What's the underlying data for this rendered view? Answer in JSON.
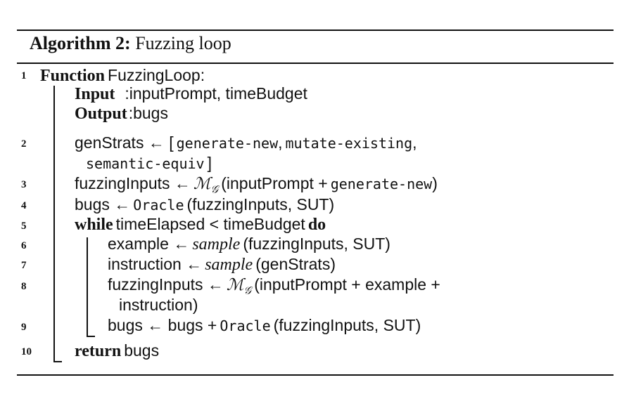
{
  "algorithm": {
    "label": "Algorithm 2:",
    "title": "Fuzzing loop"
  },
  "line_numbers": [
    "1",
    "2",
    "3",
    "4",
    "5",
    "6",
    "7",
    "8",
    "9",
    "10"
  ],
  "l1": {
    "kw": "Function",
    "name": "FuzzingLoop",
    "colon": ":"
  },
  "input": {
    "kw": "Input",
    "sep": ":",
    "value": "inputPrompt, timeBudget"
  },
  "output": {
    "kw": "Output",
    "sep": ":",
    "value": "bugs"
  },
  "l2": {
    "a": "genStrats ← [",
    "s1": "generate-new",
    "c1": ",",
    "s2": "mutate-existing",
    "c2": ",",
    "s3": "semantic-equiv",
    "close": "]"
  },
  "l3": {
    "a": "fuzzingInputs ←",
    "m": "ℳ",
    "sub": "𝒢",
    "b": "(inputPrompt +",
    "s": "generate-new",
    "c": ")"
  },
  "l4": {
    "a": "bugs ←",
    "o": "Oracle",
    "b": "(fuzzingInputs, SUT)"
  },
  "l5": {
    "kw1": "while",
    "a": "timeElapsed < timeBudget",
    "kw2": "do"
  },
  "l6": {
    "a": "example ←",
    "i": "sample",
    "b": "(fuzzingInputs, SUT)"
  },
  "l7": {
    "a": "instruction ←",
    "i": "sample",
    "b": "(genStrats)"
  },
  "l8": {
    "a": "fuzzingInputs ←",
    "m": "ℳ",
    "sub": "𝒢",
    "b": "(inputPrompt + example +",
    "c": "instruction)"
  },
  "l9": {
    "a": "bugs ← bugs +",
    "o": "Oracle",
    "b": "(fuzzingInputs, SUT)"
  },
  "l10": {
    "kw": "return",
    "a": "bugs"
  }
}
